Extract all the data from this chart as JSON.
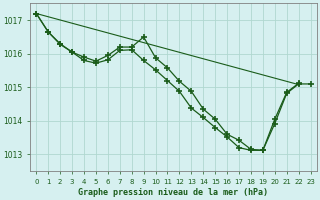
{
  "title": "Graphe pression niveau de la mer (hPa)",
  "xlim": [
    -0.5,
    23.5
  ],
  "ylim": [
    1012.5,
    1017.5
  ],
  "yticks": [
    1013,
    1014,
    1015,
    1016,
    1017
  ],
  "xticks": [
    0,
    1,
    2,
    3,
    4,
    5,
    6,
    7,
    8,
    9,
    10,
    11,
    12,
    13,
    14,
    15,
    16,
    17,
    18,
    19,
    20,
    21,
    22,
    23
  ],
  "bg_color": "#d6f0f0",
  "grid_color": "#b0d8d0",
  "line_color": "#1a5c1a",
  "series": [
    {
      "x": [
        0,
        1,
        2,
        3,
        4,
        5,
        6,
        7,
        8,
        9,
        10,
        11,
        12,
        13,
        14,
        15,
        16,
        17,
        18,
        19,
        20,
        21,
        22,
        23
      ],
      "y": [
        1017.2,
        1016.65,
        1016.3,
        1016.05,
        1015.82,
        1015.7,
        1015.92,
        1016.2,
        1016.18,
        1016.5,
        1015.85,
        1015.52,
        1015.12,
        1014.82,
        1014.3,
        1014.03,
        1013.55,
        1013.38,
        1013.12,
        1013.1,
        1014.0,
        1014.82,
        1015.08,
        1015.08
      ]
    },
    {
      "x": [
        0,
        1,
        2,
        3,
        4,
        5,
        6,
        7,
        8,
        9,
        10,
        11,
        12,
        13,
        14,
        15,
        16,
        17,
        18,
        19,
        20,
        21,
        22,
        23
      ],
      "y": [
        1017.2,
        1016.65,
        1016.28,
        1016.05,
        1015.82,
        1015.7,
        1015.82,
        1016.15,
        1016.15,
        1015.85,
        1015.55,
        1015.25,
        1014.92,
        1014.42,
        1014.1,
        1013.82,
        1013.52,
        1013.22,
        1013.12,
        1013.12,
        1013.9,
        1014.82,
        1015.08,
        1015.08
      ]
    },
    {
      "x": [
        0,
        1,
        2,
        3,
        4,
        5,
        6,
        7,
        8,
        9,
        10,
        11,
        12,
        13,
        14,
        15,
        16,
        17,
        18,
        19,
        20,
        21,
        22,
        23
      ],
      "y": [
        1017.2,
        1016.65,
        1016.28,
        1016.05,
        1015.82,
        1015.7,
        1015.78,
        1016.1,
        1016.1,
        1015.82,
        1015.52,
        1015.22,
        1014.88,
        1014.38,
        1014.08,
        1013.78,
        1013.48,
        1013.18,
        1013.1,
        1013.1,
        1013.88,
        1014.82,
        1015.08,
        1015.08
      ]
    }
  ],
  "figsize": [
    3.2,
    2.0
  ],
  "dpi": 100
}
